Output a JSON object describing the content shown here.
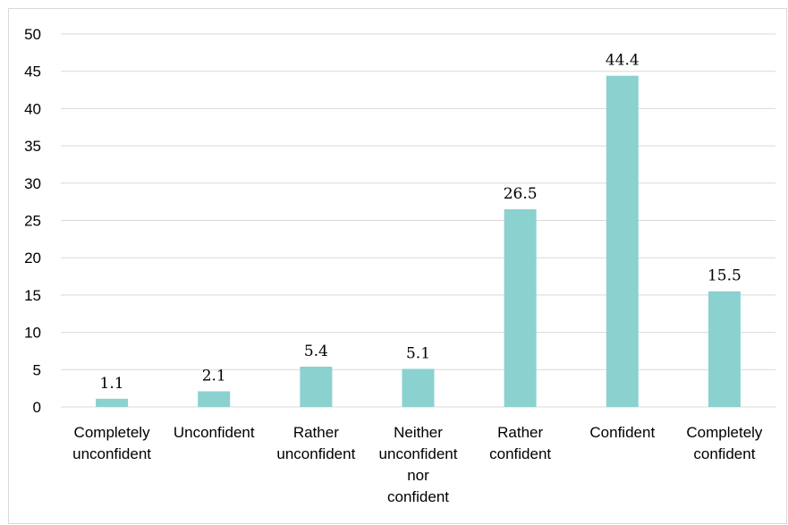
{
  "chart_data": {
    "type": "bar",
    "categories": [
      [
        "Completely",
        "unconfident"
      ],
      [
        "Unconfident"
      ],
      [
        "Rather",
        "unconfident"
      ],
      [
        "Neither",
        "unconfident",
        "nor",
        "confident"
      ],
      [
        "Rather",
        "confident"
      ],
      [
        "Confident"
      ],
      [
        "Completely",
        "confident"
      ]
    ],
    "values": [
      1.1,
      2.1,
      5.4,
      5.1,
      26.5,
      44.4,
      15.5
    ],
    "data_labels": [
      "1.1",
      "2.1",
      "5.4",
      "5.1",
      "26.5",
      "44.4",
      "15.5"
    ],
    "title": "",
    "xlabel": "",
    "ylabel": "",
    "ylim": [
      0,
      50
    ],
    "yticks": [
      "0",
      "5",
      "10",
      "15",
      "20",
      "25",
      "30",
      "35",
      "40",
      "45",
      "50"
    ],
    "grid": true,
    "legend": "none",
    "bar_color": "#8ad1d0",
    "grid_color": "#d9d9d9"
  }
}
